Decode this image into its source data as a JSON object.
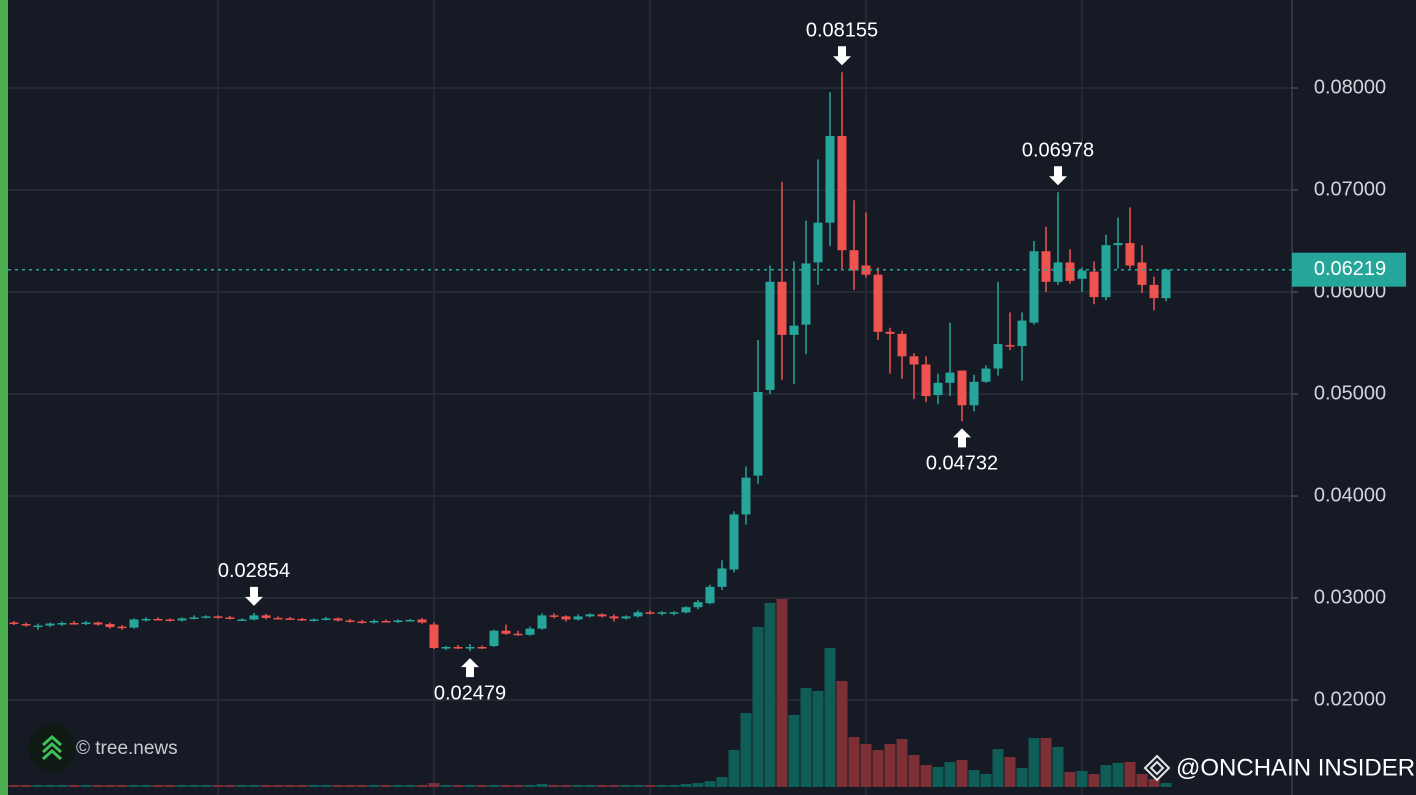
{
  "chart_data": {
    "type": "candlestick",
    "open": [
      0.0276,
      0.02745,
      0.0272,
      0.0273,
      0.0274,
      0.02755,
      0.02745,
      0.0276,
      0.02745,
      0.0272,
      0.0271,
      0.0279,
      0.02795,
      0.0279,
      0.0278,
      0.028,
      0.0281,
      0.0282,
      0.0281,
      0.02785,
      0.0279,
      0.0283,
      0.02805,
      0.028,
      0.02795,
      0.0278,
      0.0279,
      0.028,
      0.0278,
      0.0277,
      0.02765,
      0.02775,
      0.02765,
      0.0278,
      0.0279,
      0.0274,
      0.0251,
      0.0252,
      0.0251,
      0.0252,
      0.0253,
      0.0268,
      0.0265,
      0.0264,
      0.027,
      0.0283,
      0.0282,
      0.0279,
      0.0282,
      0.0284,
      0.0282,
      0.028,
      0.0282,
      0.0286,
      0.0285,
      0.0285,
      0.0286,
      0.0291,
      0.0295,
      0.0311,
      0.0328,
      0.0382,
      0.042,
      0.0504,
      0.061,
      0.0558,
      0.0568,
      0.0629,
      0.0668,
      0.0753,
      0.0641,
      0.0626,
      0.0617,
      0.0561,
      0.0559,
      0.0537,
      0.0529,
      0.0499,
      0.0511,
      0.0523,
      0.0489,
      0.0512,
      0.0525,
      0.0548,
      0.0547,
      0.057,
      0.064,
      0.061,
      0.0629,
      0.0613,
      0.062,
      0.0595,
      0.0646,
      0.0648,
      0.0629,
      0.0607,
      0.0594
    ],
    "high": [
      0.02775,
      0.0276,
      0.0275,
      0.0276,
      0.0277,
      0.02775,
      0.02775,
      0.0277,
      0.0276,
      0.02735,
      0.028,
      0.0281,
      0.0281,
      0.028,
      0.0281,
      0.0283,
      0.0283,
      0.0283,
      0.02825,
      0.028,
      0.02854,
      0.02845,
      0.0282,
      0.02815,
      0.02805,
      0.028,
      0.02815,
      0.0281,
      0.02795,
      0.02785,
      0.0279,
      0.0279,
      0.0279,
      0.02795,
      0.02805,
      0.0276,
      0.0253,
      0.0254,
      0.0255,
      0.02535,
      0.0269,
      0.0274,
      0.0268,
      0.0272,
      0.0285,
      0.0285,
      0.0283,
      0.0284,
      0.0285,
      0.0285,
      0.0284,
      0.0283,
      0.0288,
      0.0288,
      0.0287,
      0.0287,
      0.0292,
      0.0298,
      0.0313,
      0.0337,
      0.0385,
      0.0429,
      0.0553,
      0.0626,
      0.0708,
      0.063,
      0.067,
      0.073,
      0.0796,
      0.08155,
      0.069,
      0.0678,
      0.0624,
      0.0565,
      0.0562,
      0.054,
      0.0537,
      0.052,
      0.057,
      0.0523,
      0.0519,
      0.0528,
      0.061,
      0.058,
      0.058,
      0.065,
      0.0664,
      0.06978,
      0.0642,
      0.0624,
      0.063,
      0.0656,
      0.0673,
      0.0683,
      0.0646,
      0.0615,
      0.0623
    ],
    "low": [
      0.02735,
      0.0272,
      0.0269,
      0.02715,
      0.02725,
      0.0274,
      0.02735,
      0.0273,
      0.027,
      0.0269,
      0.027,
      0.0277,
      0.0278,
      0.0277,
      0.0277,
      0.0279,
      0.028,
      0.028,
      0.0279,
      0.02775,
      0.0278,
      0.0279,
      0.0279,
      0.02785,
      0.02775,
      0.0277,
      0.0278,
      0.0277,
      0.0276,
      0.0275,
      0.0275,
      0.0276,
      0.02755,
      0.0277,
      0.0275,
      0.025,
      0.0249,
      0.025,
      0.02479,
      0.025,
      0.0252,
      0.0264,
      0.0263,
      0.0263,
      0.0269,
      0.028,
      0.0277,
      0.0278,
      0.0281,
      0.0281,
      0.0277,
      0.0279,
      0.0281,
      0.0284,
      0.0283,
      0.0283,
      0.0285,
      0.0289,
      0.0294,
      0.0308,
      0.0325,
      0.0372,
      0.0412,
      0.05,
      0.0514,
      0.051,
      0.0539,
      0.0607,
      0.0645,
      0.0622,
      0.0602,
      0.0614,
      0.0553,
      0.052,
      0.0515,
      0.0495,
      0.0492,
      0.049,
      0.0498,
      0.04732,
      0.0483,
      0.0511,
      0.0518,
      0.0543,
      0.0513,
      0.0568,
      0.06,
      0.0607,
      0.0608,
      0.06,
      0.0588,
      0.0592,
      0.0623,
      0.0623,
      0.0599,
      0.0582,
      0.0591
    ],
    "close": [
      0.02745,
      0.02735,
      0.0273,
      0.0275,
      0.02755,
      0.02745,
      0.0276,
      0.0274,
      0.02715,
      0.02705,
      0.0279,
      0.02795,
      0.0279,
      0.02785,
      0.028,
      0.0281,
      0.0282,
      0.0281,
      0.028,
      0.0279,
      0.0283,
      0.02805,
      0.028,
      0.02795,
      0.02785,
      0.0279,
      0.028,
      0.0278,
      0.0277,
      0.02765,
      0.02775,
      0.0277,
      0.0278,
      0.02785,
      0.0276,
      0.0251,
      0.0252,
      0.0251,
      0.0252,
      0.0251,
      0.0268,
      0.0265,
      0.0264,
      0.027,
      0.0283,
      0.0282,
      0.0279,
      0.0282,
      0.0284,
      0.0282,
      0.028,
      0.0282,
      0.0286,
      0.0285,
      0.0286,
      0.0286,
      0.0291,
      0.0296,
      0.0311,
      0.0329,
      0.0382,
      0.0418,
      0.0502,
      0.061,
      0.0558,
      0.0567,
      0.0628,
      0.0668,
      0.0753,
      0.0641,
      0.0621,
      0.0617,
      0.0561,
      0.0559,
      0.0537,
      0.0529,
      0.0498,
      0.0511,
      0.0521,
      0.0489,
      0.0512,
      0.0525,
      0.0549,
      0.0547,
      0.0572,
      0.064,
      0.061,
      0.0629,
      0.0611,
      0.0621,
      0.0595,
      0.0646,
      0.0648,
      0.0626,
      0.0607,
      0.0594,
      0.06219
    ],
    "volume": [
      2,
      2,
      2,
      2,
      2,
      2,
      2,
      2,
      2,
      2,
      2,
      2,
      2,
      2,
      2,
      2,
      2,
      2,
      2,
      2,
      2,
      2,
      2,
      2,
      2,
      2,
      2,
      2,
      2,
      2,
      2,
      2,
      2,
      2,
      2,
      4,
      2,
      2,
      2,
      2,
      2,
      2,
      2,
      2,
      3,
      2,
      2,
      2,
      2,
      2,
      2,
      2,
      2,
      2,
      2,
      2,
      3,
      4,
      6,
      10,
      37,
      74,
      160,
      184,
      188,
      72,
      99,
      96,
      139,
      106,
      50,
      43,
      37,
      43,
      48,
      32,
      22,
      20,
      25,
      27,
      17,
      13,
      38,
      30,
      19,
      49,
      49,
      40,
      15,
      16,
      13,
      22,
      24,
      25,
      13,
      8,
      4
    ],
    "colors": {
      "up": "#26a69a",
      "down": "#ef5350",
      "volume_up": "#0e5d57",
      "volume_down": "#7c3036"
    },
    "ylim": [
      0.01069,
      0.08863
    ],
    "yticks": [
      {
        "value": 0.02,
        "label": "0.02000"
      },
      {
        "value": 0.03,
        "label": "0.03000"
      },
      {
        "value": 0.04,
        "label": "0.04000"
      },
      {
        "value": 0.05,
        "label": "0.05000"
      },
      {
        "value": 0.06,
        "label": "0.06000"
      },
      {
        "value": 0.07,
        "label": "0.07000"
      },
      {
        "value": 0.08,
        "label": "0.08000"
      }
    ],
    "grid": true,
    "last_price_line": true,
    "annotations": [
      {
        "value": 0.08155,
        "kind": "high"
      },
      {
        "value": 0.06978,
        "kind": "high"
      },
      {
        "value": 0.04732,
        "kind": "low"
      },
      {
        "value": 0.02854,
        "kind": "high"
      },
      {
        "value": 0.02479,
        "kind": "low"
      }
    ],
    "source": "© tree.news",
    "credit": "@ONCHAIN INSIDER"
  }
}
